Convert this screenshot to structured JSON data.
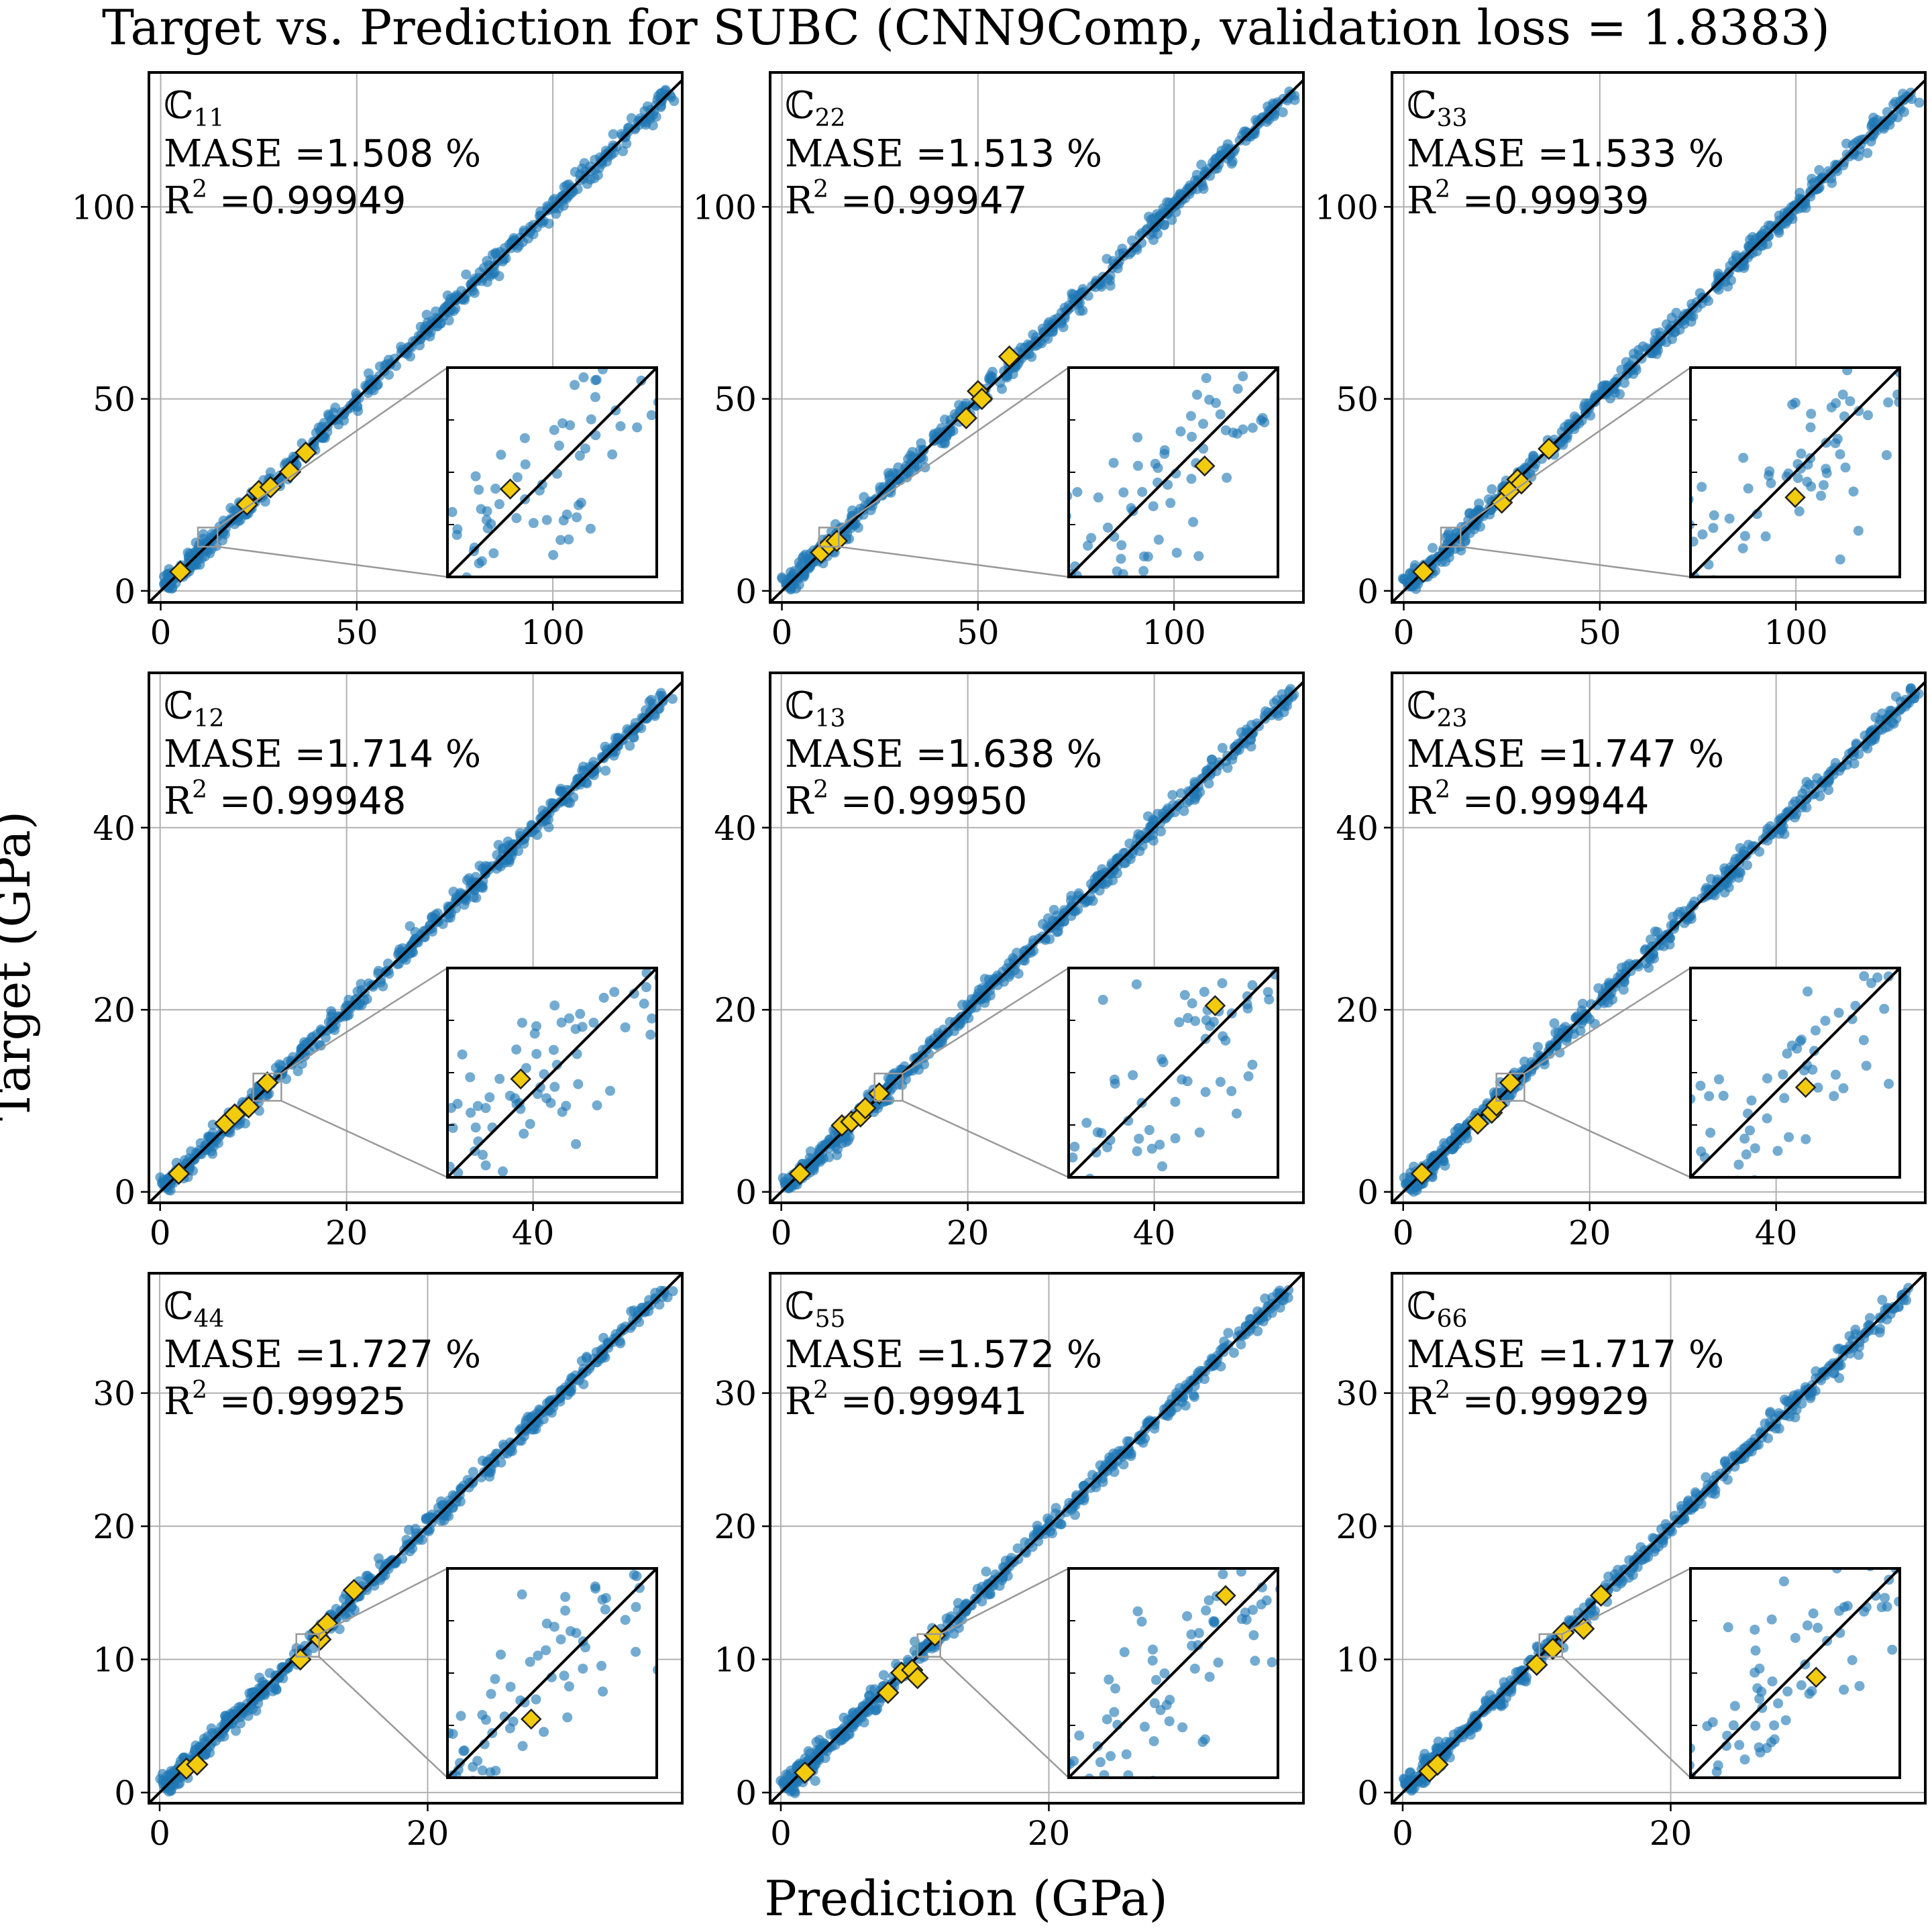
{
  "figure": {
    "title": "Target vs. Prediction for SUBC (CNN9Comp,  validation loss = 1.8383)",
    "xlabel": "Prediction (GPa)",
    "ylabel": "Target (GPa)"
  },
  "colors": {
    "points": "#1f77b4",
    "highlight": "#f2cc0c",
    "grid": "#b0b0b0",
    "zoom_box": "#999999"
  },
  "chart_data": [
    {
      "type": "scatter",
      "component": "ℂ",
      "sub": "11",
      "mase_label": "MASE =",
      "mase_value": "1.508",
      "mase_unit": " %",
      "r2_label": "R",
      "r2_sup": "2",
      "r2_eq": " =",
      "r2_value": "0.99949",
      "xlim": [
        -3,
        133
      ],
      "ylim": [
        -3,
        135
      ],
      "xticks": [
        0,
        50,
        100
      ],
      "yticks": [
        0,
        50,
        100
      ],
      "xmax": 130,
      "highlights": [
        [
          5,
          5
        ],
        [
          22,
          22.5
        ],
        [
          25,
          26
        ],
        [
          28,
          27
        ],
        [
          33,
          31
        ],
        [
          37,
          36
        ]
      ],
      "inset": {
        "xlim": [
          9,
          14
        ],
        "ylim": [
          9,
          14
        ],
        "zoom_box": [
          9.5,
          11.5,
          14.5,
          16.5
        ]
      }
    },
    {
      "type": "scatter",
      "component": "ℂ",
      "sub": "22",
      "mase_label": "MASE =",
      "mase_value": "1.513",
      "mase_unit": " %",
      "r2_label": "R",
      "r2_sup": "2",
      "r2_eq": " =",
      "r2_value": "0.99947",
      "xlim": [
        -3,
        133
      ],
      "ylim": [
        -3,
        135
      ],
      "xticks": [
        0,
        50,
        100
      ],
      "yticks": [
        0,
        50,
        100
      ],
      "xmax": 130,
      "highlights": [
        [
          10,
          10
        ],
        [
          12,
          12
        ],
        [
          14,
          13
        ],
        [
          47,
          45
        ],
        [
          50,
          52
        ],
        [
          51,
          50
        ],
        [
          58,
          61
        ]
      ],
      "inset": {
        "xlim": [
          9,
          14
        ],
        "ylim": [
          9,
          14
        ],
        "zoom_box": [
          9.5,
          11.5,
          14.5,
          16.5
        ]
      }
    },
    {
      "type": "scatter",
      "component": "ℂ",
      "sub": "33",
      "mase_label": "MASE =",
      "mase_value": "1.533",
      "mase_unit": " %",
      "r2_label": "R",
      "r2_sup": "2",
      "r2_eq": " =",
      "r2_value": "0.99939",
      "xlim": [
        -3,
        133
      ],
      "ylim": [
        -3,
        135
      ],
      "xticks": [
        0,
        50,
        100
      ],
      "yticks": [
        0,
        50,
        100
      ],
      "xmax": 130,
      "highlights": [
        [
          5,
          5
        ],
        [
          25,
          23
        ],
        [
          27,
          26
        ],
        [
          29,
          29
        ],
        [
          30,
          28
        ],
        [
          37,
          37
        ]
      ],
      "inset": {
        "xlim": [
          9,
          14
        ],
        "ylim": [
          9,
          14
        ],
        "zoom_box": [
          9.5,
          11.5,
          14.5,
          16.5
        ]
      }
    },
    {
      "type": "scatter",
      "component": "ℂ",
      "sub": "12",
      "mase_label": "MASE =",
      "mase_value": "1.714",
      "mase_unit": " %",
      "r2_label": "R",
      "r2_sup": "2",
      "r2_eq": " =",
      "r2_value": "0.99948",
      "xlim": [
        -1.2,
        56
      ],
      "ylim": [
        -1.2,
        57
      ],
      "xticks": [
        0,
        20,
        40
      ],
      "yticks": [
        0,
        20,
        40
      ],
      "xmax": 55,
      "highlights": [
        [
          2,
          2
        ],
        [
          7,
          7.5
        ],
        [
          8,
          8.5
        ],
        [
          9.5,
          9.3
        ],
        [
          11.5,
          12
        ]
      ],
      "inset": {
        "xlim": [
          10,
          12.5
        ],
        "ylim": [
          10,
          12.5
        ],
        "zoom_box": [
          10,
          10,
          13,
          13
        ]
      }
    },
    {
      "type": "scatter",
      "component": "ℂ",
      "sub": "13",
      "mase_label": "MASE =",
      "mase_value": "1.638",
      "mase_unit": " %",
      "r2_label": "R",
      "r2_sup": "2",
      "r2_eq": " =",
      "r2_value": "0.99950",
      "xlim": [
        -1.2,
        56
      ],
      "ylim": [
        -1.2,
        57
      ],
      "xticks": [
        0,
        20,
        40
      ],
      "yticks": [
        0,
        20,
        40
      ],
      "xmax": 55,
      "highlights": [
        [
          2,
          2
        ],
        [
          6.5,
          7.3
        ],
        [
          7.5,
          7.7
        ],
        [
          8.5,
          8.3
        ],
        [
          9,
          9.2
        ],
        [
          10.5,
          10.8
        ]
      ],
      "inset": {
        "xlim": [
          10,
          12.5
        ],
        "ylim": [
          10,
          12.5
        ],
        "zoom_box": [
          10,
          10,
          13,
          13
        ]
      }
    },
    {
      "type": "scatter",
      "component": "ℂ",
      "sub": "23",
      "mase_label": "MASE =",
      "mase_value": "1.747",
      "mase_unit": " %",
      "r2_label": "R",
      "r2_sup": "2",
      "r2_eq": " =",
      "r2_value": "0.99944",
      "xlim": [
        -1.2,
        56
      ],
      "ylim": [
        -1.2,
        57
      ],
      "xticks": [
        0,
        20,
        40
      ],
      "yticks": [
        0,
        20,
        40
      ],
      "xmax": 55,
      "highlights": [
        [
          2,
          2
        ],
        [
          8,
          7.5
        ],
        [
          9.5,
          8.7
        ],
        [
          10,
          9.5
        ],
        [
          11.5,
          12
        ]
      ],
      "inset": {
        "xlim": [
          10,
          12.5
        ],
        "ylim": [
          10,
          12.5
        ],
        "zoom_box": [
          10,
          10,
          13,
          13
        ]
      }
    },
    {
      "type": "scatter",
      "component": "ℂ",
      "sub": "44",
      "mase_label": "MASE =",
      "mase_value": "1.727",
      "mase_unit": " %",
      "r2_label": "R",
      "r2_sup": "2",
      "r2_eq": " =",
      "r2_value": "0.99925",
      "xlim": [
        -0.8,
        39
      ],
      "ylim": [
        -0.8,
        39
      ],
      "xticks": [
        0,
        20
      ],
      "yticks": [
        0,
        10,
        20,
        30
      ],
      "xmax": 38,
      "highlights": [
        [
          2,
          1.8
        ],
        [
          2.8,
          2.1
        ],
        [
          10.5,
          10
        ],
        [
          12,
          11.5
        ],
        [
          12,
          12.2
        ],
        [
          12.5,
          12.7
        ],
        [
          14.5,
          15.2
        ]
      ],
      "inset": {
        "xlim": [
          10.5,
          12
        ],
        "ylim": [
          10.5,
          12
        ],
        "zoom_box": [
          10.2,
          10.2,
          11.9,
          11.9
        ]
      }
    },
    {
      "type": "scatter",
      "component": "ℂ",
      "sub": "55",
      "mase_label": "MASE =",
      "mase_value": "1.572",
      "mase_unit": " %",
      "r2_label": "R",
      "r2_sup": "2",
      "r2_eq": " =",
      "r2_value": "0.99941",
      "xlim": [
        -0.8,
        39
      ],
      "ylim": [
        -0.8,
        39
      ],
      "xticks": [
        0,
        20
      ],
      "yticks": [
        0,
        10,
        20,
        30
      ],
      "xmax": 38,
      "highlights": [
        [
          1.8,
          1.5
        ],
        [
          8,
          7.5
        ],
        [
          9,
          9
        ],
        [
          9.8,
          9.2
        ],
        [
          10.2,
          8.6
        ],
        [
          11.5,
          11.8
        ]
      ],
      "inset": {
        "xlim": [
          10.5,
          12
        ],
        "ylim": [
          10.5,
          12
        ],
        "zoom_box": [
          10.2,
          10.2,
          11.9,
          11.9
        ]
      }
    },
    {
      "type": "scatter",
      "component": "ℂ",
      "sub": "66",
      "mase_label": "MASE =",
      "mase_value": "1.717",
      "mase_unit": " %",
      "r2_label": "R",
      "r2_sup": "2",
      "r2_eq": " =",
      "r2_value": "0.99929",
      "xlim": [
        -0.8,
        39
      ],
      "ylim": [
        -0.8,
        39
      ],
      "xticks": [
        0,
        20
      ],
      "yticks": [
        0,
        10,
        20,
        30
      ],
      "xmax": 38,
      "highlights": [
        [
          2,
          1.6
        ],
        [
          2.6,
          2.1
        ],
        [
          10,
          9.6
        ],
        [
          11.2,
          10.8
        ],
        [
          12,
          12
        ],
        [
          13.5,
          12.3
        ],
        [
          14.8,
          14.8
        ]
      ],
      "inset": {
        "xlim": [
          10.5,
          12
        ],
        "ylim": [
          10.5,
          12
        ],
        "zoom_box": [
          10.2,
          10.2,
          11.9,
          11.9
        ]
      }
    }
  ]
}
